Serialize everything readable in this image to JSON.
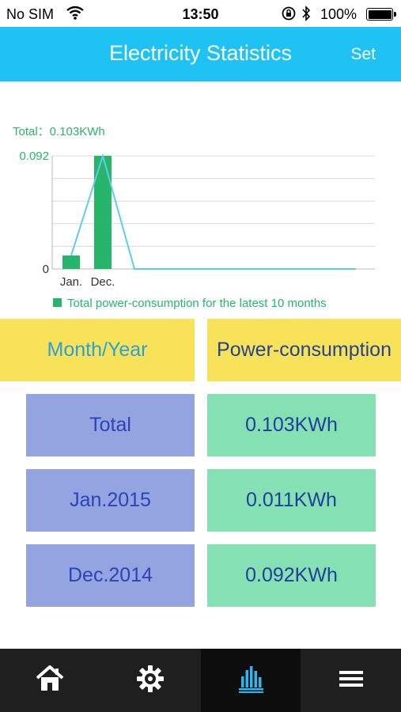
{
  "status": {
    "carrier": "No SIM",
    "time": "13:50",
    "battery": "100%"
  },
  "header": {
    "title": "Electricity Statistics",
    "set_label": "Set"
  },
  "chart_data": {
    "type": "bar",
    "total_label": "Total：0.103KWh",
    "categories": [
      "Jan.",
      "Dec."
    ],
    "values": [
      0.011,
      0.092
    ],
    "line_values": [
      0.011,
      0.092,
      0,
      0,
      0,
      0,
      0,
      0,
      0,
      0
    ],
    "ytick_labels": [
      "0",
      "0.092"
    ],
    "ylim": [
      0,
      0.092
    ],
    "legend": "Total power-consumption for the latest 10 months",
    "bar_color": "#27b56b",
    "line_color": "#5fcde8",
    "grid": true
  },
  "table": {
    "headers": [
      "Month/Year",
      "Power-consumption"
    ],
    "rows": [
      {
        "month": "Total",
        "value": "0.103KWh"
      },
      {
        "month": "Jan.2015",
        "value": "0.011KWh"
      },
      {
        "month": "Dec.2014",
        "value": "0.092KWh"
      }
    ]
  },
  "tabs": [
    {
      "icon": "home-icon",
      "active": false
    },
    {
      "icon": "gear-icon",
      "active": false
    },
    {
      "icon": "statistics-icon",
      "active": true
    },
    {
      "icon": "menu-icon",
      "active": false
    }
  ],
  "colors": {
    "header": "#1ec3f3",
    "table_header": "#f8e25a",
    "left_cells": "#94a4e0",
    "right_cells": "#85e0b4",
    "tabbar": "#1f1f1f",
    "active_tab_icon": "#2bb8f0"
  }
}
